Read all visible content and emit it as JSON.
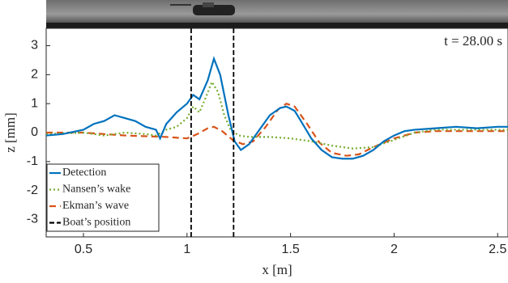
{
  "chart_data": {
    "type": "line",
    "annotation": "t = 28.00 s",
    "xlabel": "x [m]",
    "ylabel": "z [mm]",
    "xlim": [
      0.32,
      2.55
    ],
    "ylim": [
      -3.6,
      3.6
    ],
    "xticks": [
      0.5,
      1,
      1.5,
      2,
      2.5
    ],
    "yticks": [
      -3,
      -2,
      -1,
      0,
      1,
      2,
      3
    ],
    "legend": "lower left",
    "series": [
      {
        "name": "Detection",
        "color": "#0072bd",
        "style": "solid",
        "x": [
          0.32,
          0.4,
          0.5,
          0.55,
          0.6,
          0.65,
          0.7,
          0.75,
          0.8,
          0.85,
          0.87,
          0.9,
          0.95,
          1.0,
          1.03,
          1.06,
          1.1,
          1.13,
          1.16,
          1.2,
          1.23,
          1.26,
          1.3,
          1.35,
          1.4,
          1.45,
          1.48,
          1.52,
          1.55,
          1.6,
          1.65,
          1.7,
          1.75,
          1.8,
          1.85,
          1.9,
          1.95,
          2.0,
          2.05,
          2.1,
          2.2,
          2.3,
          2.4,
          2.5,
          2.55
        ],
        "values": [
          -0.1,
          -0.05,
          0.1,
          0.3,
          0.4,
          0.6,
          0.5,
          0.4,
          0.2,
          0.1,
          -0.2,
          0.3,
          0.7,
          1.0,
          1.3,
          1.15,
          1.8,
          2.55,
          2.0,
          0.6,
          -0.3,
          -0.6,
          -0.4,
          0.1,
          0.6,
          0.85,
          0.9,
          0.75,
          0.4,
          -0.2,
          -0.6,
          -0.85,
          -0.9,
          -0.9,
          -0.8,
          -0.6,
          -0.3,
          -0.1,
          0.05,
          0.1,
          0.15,
          0.2,
          0.15,
          0.2,
          0.2
        ]
      },
      {
        "name": "Nansen’s wake",
        "color": "#77ac30",
        "style": "dotted",
        "x": [
          0.32,
          0.5,
          0.6,
          0.7,
          0.8,
          0.85,
          0.9,
          0.95,
          1.0,
          1.03,
          1.06,
          1.09,
          1.12,
          1.15,
          1.18,
          1.21,
          1.25,
          1.3,
          1.4,
          1.5,
          1.6,
          1.7,
          1.8,
          1.9,
          2.0,
          2.1,
          2.2,
          2.3,
          2.4,
          2.55
        ],
        "values": [
          -0.05,
          0,
          -0.1,
          0,
          -0.05,
          -0.1,
          0.1,
          0.2,
          0.5,
          0.9,
          0.7,
          1.2,
          1.75,
          1.4,
          0.6,
          0.1,
          -0.1,
          -0.15,
          -0.15,
          -0.2,
          -0.3,
          -0.45,
          -0.55,
          -0.5,
          -0.25,
          0,
          0.1,
          0.1,
          0.1,
          0.1
        ]
      },
      {
        "name": "Ekman’s wave",
        "color": "#d95319",
        "style": "dashed",
        "x": [
          0.32,
          0.5,
          0.7,
          0.9,
          1.0,
          1.05,
          1.1,
          1.13,
          1.17,
          1.22,
          1.27,
          1.32,
          1.38,
          1.44,
          1.48,
          1.52,
          1.58,
          1.64,
          1.7,
          1.77,
          1.83,
          1.9,
          2.0,
          2.1,
          2.2,
          2.3,
          2.55
        ],
        "values": [
          0,
          0,
          -0.1,
          -0.15,
          -0.2,
          -0.05,
          0.15,
          0.2,
          0.05,
          -0.25,
          -0.4,
          -0.3,
          0.2,
          0.8,
          1.0,
          0.9,
          0.3,
          -0.35,
          -0.7,
          -0.8,
          -0.75,
          -0.5,
          -0.2,
          0,
          0.05,
          0.05,
          0.05
        ]
      }
    ],
    "boat_position": {
      "name": "Boat’s position",
      "color": "#000000",
      "values": [
        1.02,
        1.225
      ]
    }
  }
}
